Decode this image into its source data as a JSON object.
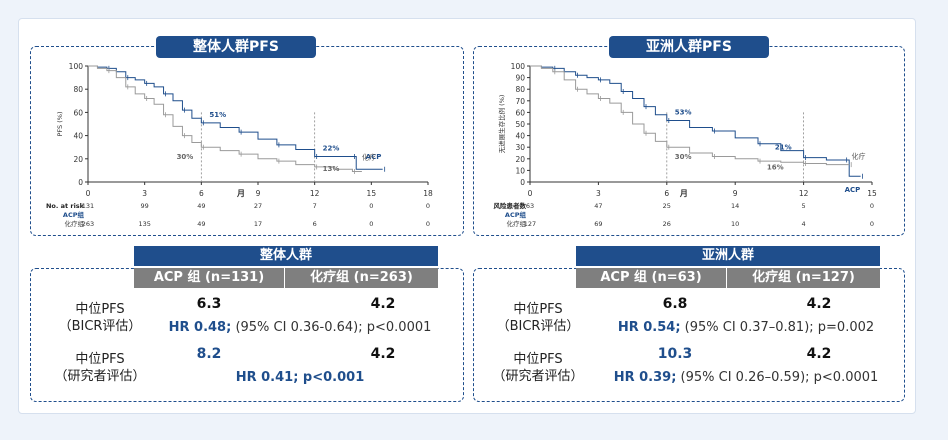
{
  "colors": {
    "acp": "#1f4e8c",
    "chemo": "#9a9a9a",
    "banner": "#1f4e8c",
    "header_gray": "#7f7f7f"
  },
  "chart_data": [
    {
      "type": "line",
      "chart_kind": "kaplan-meier",
      "title": "整体人群PFS",
      "ylabel": "PFS (%)",
      "xlabel": "月",
      "xlim": [
        0,
        18
      ],
      "ylim": [
        0,
        100
      ],
      "x_ticks": [
        "0",
        "3",
        "6",
        "9",
        "12",
        "15",
        "18"
      ],
      "y_ticks": [
        "0",
        "20",
        "40",
        "60",
        "80",
        "100"
      ],
      "series": [
        {
          "name": "ACP",
          "color": "#1f4e8c",
          "points": [
            [
              0,
              100
            ],
            [
              0.5,
              99
            ],
            [
              1,
              98
            ],
            [
              1.5,
              95
            ],
            [
              2,
              90
            ],
            [
              2.5,
              88
            ],
            [
              3,
              85
            ],
            [
              3.5,
              82
            ],
            [
              4,
              76
            ],
            [
              4.5,
              70
            ],
            [
              5,
              62
            ],
            [
              5.5,
              55
            ],
            [
              6,
              51
            ],
            [
              7,
              47
            ],
            [
              8,
              43
            ],
            [
              9,
              37
            ],
            [
              10,
              32
            ],
            [
              11,
              28
            ],
            [
              12,
              22
            ],
            [
              13,
              22
            ],
            [
              14,
              22
            ],
            [
              14.2,
              11
            ],
            [
              15.6,
              11
            ]
          ]
        },
        {
          "name": "化疗",
          "color": "#9a9a9a",
          "points": [
            [
              0,
              100
            ],
            [
              0.5,
              98
            ],
            [
              1,
              96
            ],
            [
              1.5,
              90
            ],
            [
              2,
              82
            ],
            [
              2.5,
              76
            ],
            [
              3,
              72
            ],
            [
              3.5,
              67
            ],
            [
              4,
              58
            ],
            [
              4.5,
              48
            ],
            [
              5,
              40
            ],
            [
              5.5,
              34
            ],
            [
              6,
              30
            ],
            [
              7,
              27
            ],
            [
              8,
              24
            ],
            [
              9,
              20
            ],
            [
              10,
              18
            ],
            [
              11,
              15
            ],
            [
              12,
              13
            ],
            [
              13,
              11
            ],
            [
              14,
              9
            ],
            [
              14.5,
              9
            ]
          ]
        }
      ],
      "annotations": [
        {
          "text": "51%",
          "series": "ACP"
        },
        {
          "text": "30%",
          "series": "化疗"
        },
        {
          "text": "22%",
          "series": "ACP"
        },
        {
          "text": "13%",
          "series": "化疗"
        }
      ],
      "risk_table": {
        "header": "No. at risk",
        "rows": [
          {
            "label": "ACP组",
            "values": [
              "131",
              "99",
              "49",
              "27",
              "7",
              "0",
              "0"
            ]
          },
          {
            "label": "化疗组",
            "values": [
              "263",
              "135",
              "49",
              "17",
              "6",
              "0",
              "0"
            ]
          }
        ]
      }
    },
    {
      "type": "line",
      "chart_kind": "kaplan-meier",
      "title": "亚洲人群PFS",
      "ylabel": "无进展生存比例 (%)",
      "xlabel": "月",
      "xlim": [
        0,
        15
      ],
      "ylim": [
        0,
        100
      ],
      "x_ticks": [
        "0",
        "3",
        "6",
        "9",
        "12",
        "15"
      ],
      "y_ticks": [
        "0",
        "10",
        "20",
        "30",
        "40",
        "50",
        "60",
        "70",
        "80",
        "90",
        "100"
      ],
      "series": [
        {
          "name": "ACP",
          "color": "#1f4e8c",
          "points": [
            [
              0,
              100
            ],
            [
              0.5,
              99
            ],
            [
              1,
              98
            ],
            [
              1.5,
              95
            ],
            [
              2,
              92
            ],
            [
              2.5,
              90
            ],
            [
              3,
              88
            ],
            [
              3.5,
              85
            ],
            [
              4,
              78
            ],
            [
              4.5,
              72
            ],
            [
              5,
              65
            ],
            [
              5.5,
              58
            ],
            [
              6,
              53
            ],
            [
              7,
              47
            ],
            [
              8,
              44
            ],
            [
              9,
              38
            ],
            [
              10,
              33
            ],
            [
              11,
              27
            ],
            [
              12,
              21
            ],
            [
              13,
              19
            ],
            [
              13.8,
              19
            ],
            [
              14,
              5
            ],
            [
              14.5,
              5
            ]
          ]
        },
        {
          "name": "化疗",
          "color": "#9a9a9a",
          "points": [
            [
              0,
              100
            ],
            [
              0.5,
              98
            ],
            [
              1,
              95
            ],
            [
              1.5,
              88
            ],
            [
              2,
              80
            ],
            [
              2.5,
              76
            ],
            [
              3,
              72
            ],
            [
              3.5,
              68
            ],
            [
              4,
              60
            ],
            [
              4.5,
              50
            ],
            [
              5,
              42
            ],
            [
              5.5,
              35
            ],
            [
              6,
              30
            ],
            [
              7,
              25
            ],
            [
              8,
              22
            ],
            [
              9,
              20
            ],
            [
              10,
              18
            ],
            [
              11,
              17
            ],
            [
              12,
              16
            ],
            [
              13,
              15
            ],
            [
              14,
              15
            ]
          ]
        }
      ],
      "annotations": [
        {
          "text": "53%",
          "series": "ACP"
        },
        {
          "text": "30%",
          "series": "化疗"
        },
        {
          "text": "21%",
          "series": "ACP"
        },
        {
          "text": "16%",
          "series": "化疗"
        }
      ],
      "risk_table": {
        "header": "风险患者数",
        "rows": [
          {
            "label": "ACP组",
            "values": [
              "63",
              "47",
              "25",
              "14",
              "5",
              "0"
            ]
          },
          {
            "label": "化疗组",
            "values": [
              "127",
              "69",
              "26",
              "10",
              "4",
              "0"
            ]
          }
        ]
      }
    }
  ],
  "tables": {
    "overall": {
      "title": "整体人群",
      "col_acp": "ACP 组 (n=131)",
      "col_chemo": "化疗组 (n=263)",
      "row1_label_a": "中位PFS",
      "row1_label_b": "（BICR评估）",
      "row1_acp": "6.3",
      "row1_chemo": "4.2",
      "row1_hr_bold": "HR 0.48;",
      "row1_hr_rest": " (95% CI 0.36-0.64); p<0.0001",
      "row2_label_a": "中位PFS",
      "row2_label_b": "（研究者评估）",
      "row2_acp": "8.2",
      "row2_chemo": "4.2",
      "row2_hr_bold": "HR 0.41; p<0.001",
      "row2_hr_rest": ""
    },
    "asian": {
      "title": "亚洲人群",
      "col_acp": "ACP 组 (n=63)",
      "col_chemo": "化疗组 (n=127)",
      "row1_label_a": "中位PFS",
      "row1_label_b": "（BICR评估）",
      "row1_acp": "6.8",
      "row1_chemo": "4.2",
      "row1_hr_bold": "HR 0.54;",
      "row1_hr_rest": " (95% CI 0.37–0.81); p=0.002",
      "row2_label_a": "中位PFS",
      "row2_label_b": "（研究者评估）",
      "row2_acp": "10.3",
      "row2_chemo": "4.2",
      "row2_hr_bold": "HR 0.39;",
      "row2_hr_rest": " (95% CI 0.26–0.59); p<0.0001"
    }
  }
}
